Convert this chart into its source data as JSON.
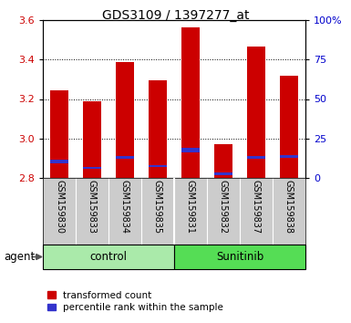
{
  "title": "GDS3109 / 1397277_at",
  "samples": [
    "GSM159830",
    "GSM159833",
    "GSM159834",
    "GSM159835",
    "GSM159831",
    "GSM159832",
    "GSM159837",
    "GSM159838"
  ],
  "red_values": [
    3.245,
    3.19,
    3.385,
    3.295,
    3.565,
    2.97,
    3.465,
    3.32
  ],
  "blue_values": [
    2.875,
    2.845,
    2.895,
    2.855,
    2.93,
    2.815,
    2.895,
    2.9
  ],
  "blue_heights": [
    0.018,
    0.012,
    0.015,
    0.01,
    0.022,
    0.012,
    0.016,
    0.014
  ],
  "ymin": 2.8,
  "ymax": 3.6,
  "yticks_left": [
    2.8,
    3.0,
    3.2,
    3.4,
    3.6
  ],
  "yticks_right": [
    0,
    25,
    50,
    75,
    100
  ],
  "yticks_right_labels": [
    "0",
    "25",
    "50",
    "75",
    "100%"
  ],
  "groups": [
    {
      "label": "control",
      "span": 4,
      "color": "#aaeaaa"
    },
    {
      "label": "Sunitinib",
      "span": 4,
      "color": "#55dd55"
    }
  ],
  "bar_color_red": "#cc0000",
  "bar_color_blue": "#3333cc",
  "bar_width": 0.55,
  "agent_label": "agent",
  "legend_red": "transformed count",
  "legend_blue": "percentile rank within the sample",
  "left_tick_color": "#cc0000",
  "right_tick_color": "#0000cc",
  "tick_bg": "#cccccc",
  "plot_bg": "#ffffff"
}
